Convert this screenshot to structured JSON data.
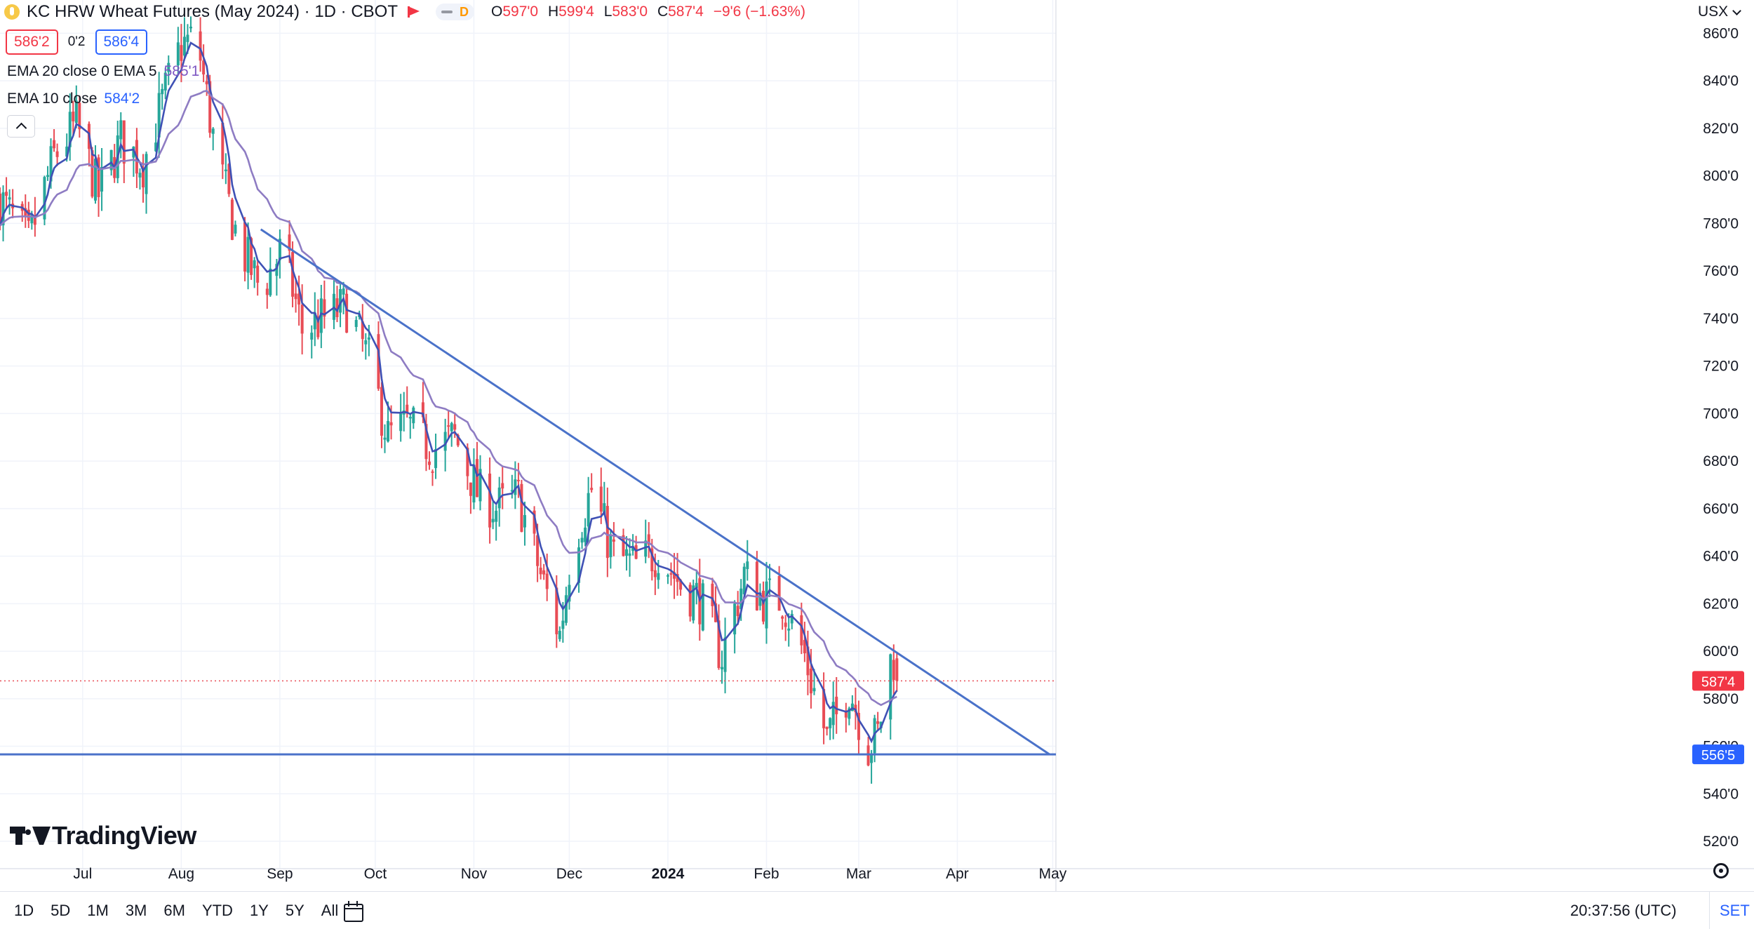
{
  "header": {
    "symbol_title": "KC HRW Wheat Futures (May 2024) · 1D · CBOT",
    "data_badge": "D",
    "ohlc": {
      "o_label": "O",
      "o_value": "597'0",
      "h_label": "H",
      "h_value": "599'4",
      "l_label": "L",
      "l_value": "583'0",
      "c_label": "C",
      "c_value": "587'4",
      "change": "−9'6 (−1.63%)"
    },
    "sell_price": "586'2",
    "spread": "0'2",
    "buy_price": "586'4",
    "indicators": [
      {
        "label": "EMA 20 close 0 EMA 5",
        "value": "585'1"
      },
      {
        "label": "EMA 10 close",
        "value": "584'2"
      }
    ],
    "currency_button": "USX"
  },
  "watermark": "TradingView",
  "bottom_bar": {
    "ranges": [
      "1D",
      "5D",
      "1M",
      "3M",
      "6M",
      "YTD",
      "1Y",
      "5Y",
      "All"
    ],
    "time": "20:37:56 (UTC)",
    "session": "SET"
  },
  "colors": {
    "up": "#26a69a",
    "down": "#e84c55",
    "ema_fast": "#3f51b5",
    "ema_slow": "#8e7cc3",
    "trendline": "#4a72c9",
    "grid": "#f0f3fa"
  },
  "chart_data": {
    "type": "candlestick",
    "title": "KC HRW Wheat Futures (May 2024) · 1D · CBOT",
    "y_axis": {
      "ticks": [
        "520'0",
        "540'0",
        "560'0",
        "580'0",
        "600'0",
        "620'0",
        "640'0",
        "660'0",
        "680'0",
        "700'0",
        "720'0",
        "740'0",
        "760'0",
        "780'0",
        "800'0",
        "820'0",
        "840'0",
        "860'0"
      ],
      "tick_values": [
        520,
        540,
        560,
        580,
        600,
        620,
        640,
        660,
        680,
        700,
        720,
        740,
        760,
        780,
        800,
        820,
        840,
        860
      ],
      "range": [
        508.5,
        874
      ],
      "scale": "linear"
    },
    "x_axis": {
      "ticks": [
        "Jul",
        "Aug",
        "Sep",
        "Oct",
        "Nov",
        "Dec",
        "2024",
        "Feb",
        "Mar",
        "Apr",
        "May"
      ],
      "tick_dates": [
        "2023-07-01",
        "2023-08-01",
        "2023-09-01",
        "2023-10-01",
        "2023-11-01",
        "2023-12-01",
        "2024-01-01",
        "2024-02-01",
        "2024-03-01",
        "2024-04-01",
        "2024-05-01"
      ],
      "range": [
        "2023-06-05",
        "2024-05-02"
      ],
      "bold_tick": "2024"
    },
    "grid": true,
    "last_price_label": "587'4",
    "last_price": 587.5,
    "support_label": "556'5",
    "support_level": 556.6,
    "trendlines": [
      {
        "name": "descending",
        "from": {
          "date": "2023-08-26",
          "price": 777.5
        },
        "to": {
          "date": "2024-04-30",
          "price": 556.6
        }
      },
      {
        "name": "support",
        "from": {
          "date": "2023-06-05",
          "price": 556.6
        },
        "to": {
          "date": "2024-05-02",
          "price": 556.6
        }
      }
    ],
    "waypoints": [
      [
        "2023-06-05",
        790
      ],
      [
        "2023-06-14",
        772
      ],
      [
        "2023-06-22",
        808
      ],
      [
        "2023-06-29",
        822
      ],
      [
        "2023-07-06",
        792
      ],
      [
        "2023-07-13",
        815
      ],
      [
        "2023-07-20",
        805
      ],
      [
        "2023-07-27",
        835
      ],
      [
        "2023-08-01",
        855
      ],
      [
        "2023-08-06",
        858
      ],
      [
        "2023-08-12",
        808
      ],
      [
        "2023-08-19",
        772
      ],
      [
        "2023-08-26",
        752
      ],
      [
        "2023-09-02",
        770
      ],
      [
        "2023-09-08",
        735
      ],
      [
        "2023-09-15",
        740
      ],
      [
        "2023-09-22",
        745
      ],
      [
        "2023-09-29",
        722
      ],
      [
        "2023-10-05",
        690
      ],
      [
        "2023-10-11",
        695
      ],
      [
        "2023-10-19",
        685
      ],
      [
        "2023-10-26",
        690
      ],
      [
        "2023-11-02",
        667
      ],
      [
        "2023-11-08",
        660
      ],
      [
        "2023-11-15",
        665
      ],
      [
        "2023-11-22",
        632
      ],
      [
        "2023-11-28",
        607
      ],
      [
        "2023-12-02",
        645
      ],
      [
        "2023-12-08",
        668
      ],
      [
        "2023-12-15",
        640
      ],
      [
        "2023-12-22",
        636
      ],
      [
        "2023-12-29",
        642
      ],
      [
        "2024-01-05",
        628
      ],
      [
        "2024-01-11",
        622
      ],
      [
        "2024-01-18",
        598
      ],
      [
        "2024-01-25",
        632
      ],
      [
        "2024-01-31",
        622
      ],
      [
        "2024-02-06",
        622
      ],
      [
        "2024-02-13",
        598
      ],
      [
        "2024-02-20",
        563
      ],
      [
        "2024-02-27",
        585
      ],
      [
        "2024-03-04",
        560
      ],
      [
        "2024-03-07",
        565
      ],
      [
        "2024-03-11",
        596
      ],
      [
        "2024-03-12",
        597
      ],
      [
        "2024-03-13",
        587.5
      ]
    ]
  }
}
